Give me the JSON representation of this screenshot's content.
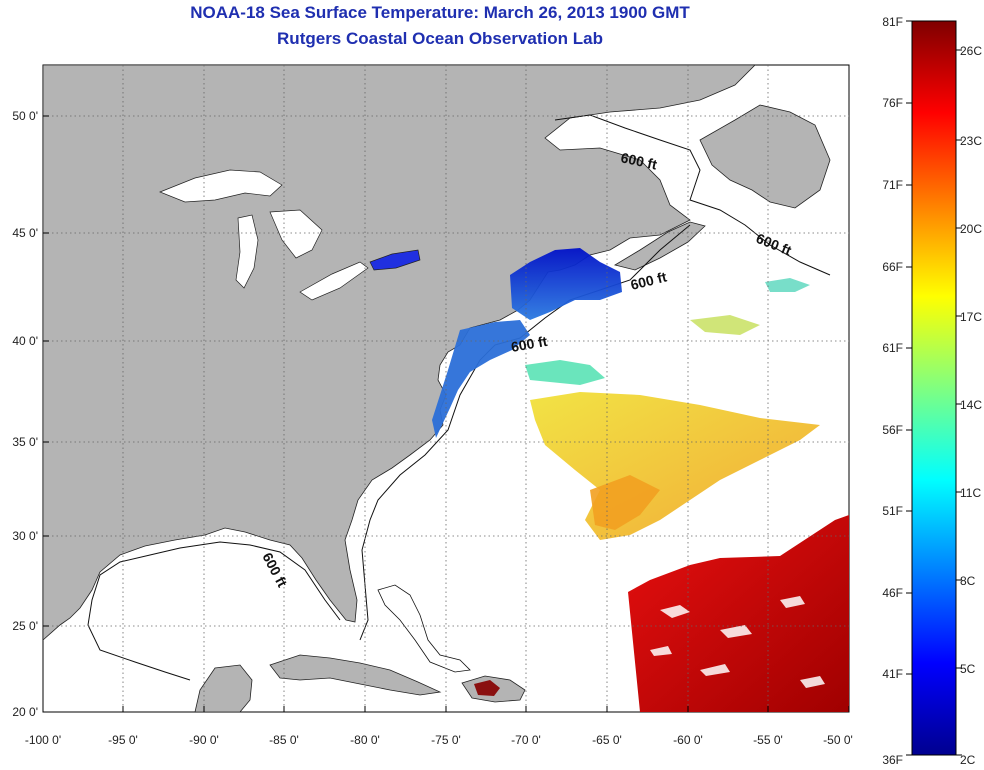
{
  "header": {
    "title": "NOAA-18 Sea Surface Temperature:  March 26, 2013 1900 GMT",
    "subtitle": "Rutgers Coastal Ocean Observation Lab"
  },
  "map": {
    "lon_ticks": [
      "-100 0'",
      "-95 0'",
      "-90 0'",
      "-85 0'",
      "-80 0'",
      "-75 0'",
      "-70 0'",
      "-65 0'",
      "-60 0'",
      "-55 0'",
      "-50 0'"
    ],
    "lat_ticks": [
      "50 0'",
      "45 0'",
      "40 0'",
      "35 0'",
      "30 0'",
      "25 0'",
      "20 0'"
    ],
    "contour_label": "600 ft",
    "colors": {
      "land": "#b4b4b4",
      "ocean": "#ffffff",
      "grid": "#666666"
    }
  },
  "colorbar": {
    "fahrenheit": [
      "81F",
      "76F",
      "71F",
      "66F",
      "61F",
      "56F",
      "51F",
      "46F",
      "41F",
      "36F"
    ],
    "celsius": [
      "26C",
      "23C",
      "20C",
      "17C",
      "14C",
      "11C",
      "8C",
      "5C",
      "2C"
    ],
    "colormap": [
      "#7f0000",
      "#ff0000",
      "#ff8000",
      "#ffff00",
      "#80ff80",
      "#00ffff",
      "#0080ff",
      "#0000ff",
      "#00008f"
    ]
  }
}
